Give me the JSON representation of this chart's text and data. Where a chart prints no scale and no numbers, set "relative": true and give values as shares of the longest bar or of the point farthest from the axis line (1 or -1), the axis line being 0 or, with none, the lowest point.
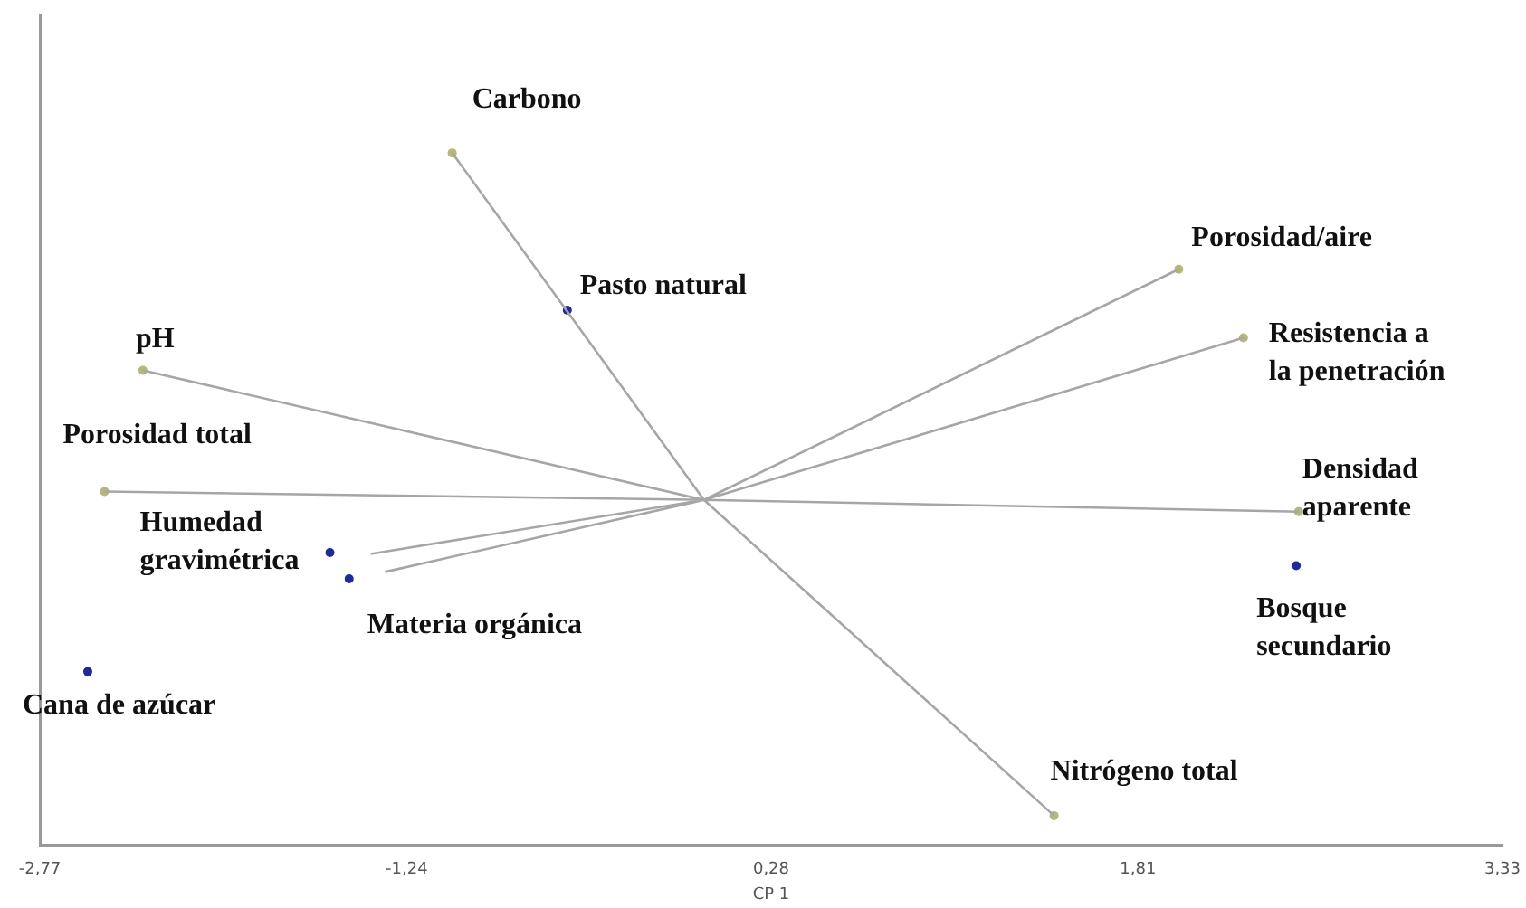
{
  "chart_data": {
    "type": "scatter",
    "relative": true,
    "xlabel": "CP 1",
    "grid": false,
    "legend": false,
    "xlim": [
      -2.77,
      3.33
    ],
    "xticks": [
      {
        "value": -2.77,
        "label": "-2,77"
      },
      {
        "value": -1.24,
        "label": "-1,24"
      },
      {
        "value": 0.28,
        "label": "0,28"
      },
      {
        "value": 1.81,
        "label": "1,81"
      },
      {
        "value": 3.33,
        "label": "3,33"
      }
    ],
    "series": [
      {
        "type": "line",
        "color": "#a6a6a6",
        "marker": "none",
        "line_style": "solid",
        "x": [
          0,
          -1.05,
          null,
          0,
          1.98,
          null,
          0,
          2.25,
          null,
          0,
          -2.34,
          null,
          0,
          -2.5,
          null,
          0,
          2.48,
          null,
          0,
          -1.39,
          null,
          0,
          -1.33,
          null,
          0,
          1.46
        ],
        "values": [
          0.499,
          1.0,
          null,
          0.499,
          0.832,
          null,
          0.499,
          0.733,
          null,
          0.499,
          0.686,
          null,
          0.499,
          0.511,
          null,
          0.499,
          0.482,
          null,
          0.499,
          0.421,
          null,
          0.499,
          0.395,
          null,
          0.499,
          0.043
        ]
      },
      {
        "type": "scatter",
        "color": "#b5b878",
        "marker": "circle",
        "x": [
          -1.05,
          1.98,
          2.25,
          -2.34,
          -2.5,
          2.48,
          1.46
        ],
        "values": [
          1.0,
          0.832,
          0.733,
          0.686,
          0.511,
          0.482,
          0.043
        ]
      },
      {
        "type": "scatter",
        "color": "#1f2a99",
        "marker": "circle",
        "x": [
          -0.57,
          2.47,
          -1.56,
          -1.48,
          -2.57
        ],
        "values": [
          0.773,
          0.404,
          0.423,
          0.385,
          0.251
        ]
      }
    ],
    "annotations": [
      {
        "text": "Carbono",
        "x": -1.05,
        "y": 1.0
      },
      {
        "text": "Pasto natural",
        "x": -0.57,
        "y": 0.773
      },
      {
        "text": "Porosidad/aire",
        "x": 1.98,
        "y": 0.832
      },
      {
        "text": "Resistencia a la penetración",
        "x": 2.25,
        "y": 0.733
      },
      {
        "text": "pH",
        "x": -2.34,
        "y": 0.686
      },
      {
        "text": "Porosidad total",
        "x": -2.5,
        "y": 0.511
      },
      {
        "text": "Densidad aparente",
        "x": 2.48,
        "y": 0.482
      },
      {
        "text": "Bosque secundario",
        "x": 2.47,
        "y": 0.404
      },
      {
        "text": "Humedad gravimétrica",
        "x": -1.56,
        "y": 0.423
      },
      {
        "text": "Materia orgánica",
        "x": -1.48,
        "y": 0.385
      },
      {
        "text": "Cana de azúcar",
        "x": -2.57,
        "y": 0.251
      },
      {
        "text": "Nitrógeno total",
        "x": 1.46,
        "y": 0.043
      }
    ]
  }
}
